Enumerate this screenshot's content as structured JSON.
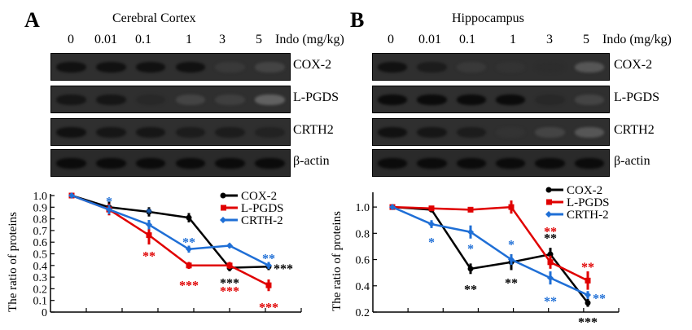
{
  "panels": [
    {
      "letter": "A",
      "title": "Cerebral Cortex",
      "doses": [
        "0",
        "0.01",
        "0.1",
        "1",
        "3",
        "5"
      ],
      "dose_unit": "Indo (mg/kg)",
      "proteins": [
        "COX-2",
        "L-PGDS",
        "CRTH2",
        "β-actin"
      ],
      "band_intensity": [
        [
          0.9,
          0.9,
          0.9,
          0.9,
          0.55,
          0.45
        ],
        [
          0.85,
          0.85,
          0.7,
          0.45,
          0.5,
          0.2
        ],
        [
          0.9,
          0.85,
          0.85,
          0.8,
          0.8,
          0.75
        ],
        [
          0.95,
          0.95,
          0.95,
          0.95,
          0.95,
          0.95
        ]
      ]
    },
    {
      "letter": "B",
      "title": "Hippocampus",
      "doses": [
        "0",
        "0.01",
        "0.1",
        "1",
        "3",
        "5"
      ],
      "dose_unit": "Indo (mg/kg)",
      "proteins": [
        "COX-2",
        "L-PGDS",
        "CRTH2",
        "β-actin"
      ],
      "band_intensity": [
        [
          0.9,
          0.8,
          0.55,
          0.6,
          0.65,
          0.3
        ],
        [
          0.95,
          0.95,
          0.95,
          0.95,
          0.7,
          0.45
        ],
        [
          0.9,
          0.85,
          0.8,
          0.6,
          0.45,
          0.3
        ],
        [
          0.95,
          0.95,
          0.95,
          0.95,
          0.95,
          0.95
        ]
      ]
    }
  ],
  "chart_data": [
    {
      "type": "line",
      "ylabel": "The ratio of proteins",
      "ylim": [
        0,
        1.0
      ],
      "yticks": [
        "0",
        "0.1",
        "0.2",
        "0.3",
        "0.4",
        "0.5",
        "0.6",
        "0.7",
        "0.8",
        "0.9",
        "1.0"
      ],
      "legend_position": "top-right",
      "x": [
        0,
        0.01,
        0.1,
        1,
        3,
        5
      ],
      "series": [
        {
          "name": "COX-2",
          "color": "#000000",
          "values": [
            1.0,
            0.9,
            0.86,
            0.81,
            0.38,
            0.39
          ],
          "errors": [
            0.01,
            0.05,
            0.04,
            0.04,
            0.03,
            0.03
          ]
        },
        {
          "name": "L-PGDS",
          "color": "#e00000",
          "values": [
            1.0,
            0.88,
            0.66,
            0.4,
            0.4,
            0.23
          ],
          "errors": [
            0.01,
            0.05,
            0.08,
            0.03,
            0.03,
            0.05
          ]
        },
        {
          "name": "CRTH-2",
          "color": "#1f6fd6",
          "values": [
            1.0,
            0.88,
            0.75,
            0.54,
            0.57,
            0.4
          ],
          "errors": [
            0.01,
            0.04,
            0.04,
            0.03,
            0.02,
            0.03
          ]
        }
      ],
      "annotations": [
        {
          "text": "*",
          "x": 0.01,
          "y": 0.97,
          "color": "#1f6fd6"
        },
        {
          "text": "*",
          "x": 0.1,
          "y": 0.87,
          "color": "#1f6fd6"
        },
        {
          "text": "**",
          "x": 1,
          "y": 0.62,
          "color": "#1f6fd6"
        },
        {
          "text": "**",
          "x": 5,
          "y": 0.48,
          "color": "#1f6fd6"
        },
        {
          "text": "**",
          "x": 0.1,
          "y": 0.5,
          "color": "#e00000"
        },
        {
          "text": "***",
          "x": 1,
          "y": 0.25,
          "color": "#e00000"
        },
        {
          "text": "***",
          "x": 3,
          "y": 0.27,
          "color": "#000000"
        },
        {
          "text": "***",
          "x": 3,
          "y": 0.2,
          "color": "#e00000"
        },
        {
          "text": "***",
          "x": 5,
          "y": 0.39,
          "color": "#000000",
          "side": "right"
        },
        {
          "text": "***",
          "x": 5,
          "y": 0.06,
          "color": "#e00000"
        }
      ]
    },
    {
      "type": "line",
      "ylabel": "The ratio of proteins",
      "ylim": [
        0.2,
        1.1
      ],
      "yticks": [
        "0.2",
        "0.4",
        "0.6",
        "0.8",
        "1.0"
      ],
      "legend_position": "top-right",
      "x": [
        0,
        0.01,
        0.1,
        1,
        3,
        5
      ],
      "series": [
        {
          "name": "COX-2",
          "color": "#000000",
          "values": [
            1.0,
            0.98,
            0.53,
            0.58,
            0.64,
            0.27
          ],
          "errors": [
            0.01,
            0.02,
            0.04,
            0.06,
            0.05,
            0.03
          ]
        },
        {
          "name": "L-PGDS",
          "color": "#e00000",
          "values": [
            1.0,
            0.99,
            0.98,
            1.0,
            0.58,
            0.44
          ],
          "errors": [
            0.01,
            0.02,
            0.02,
            0.05,
            0.05,
            0.07
          ]
        },
        {
          "name": "CRTH-2",
          "color": "#1f6fd6",
          "values": [
            1.0,
            0.87,
            0.81,
            0.6,
            0.46,
            0.33
          ],
          "errors": [
            0.01,
            0.03,
            0.05,
            0.04,
            0.05,
            0.03
          ]
        }
      ],
      "annotations": [
        {
          "text": "*",
          "x": 0.01,
          "y": 0.75,
          "color": "#1f6fd6"
        },
        {
          "text": "*",
          "x": 0.1,
          "y": 0.7,
          "color": "#1f6fd6"
        },
        {
          "text": "*",
          "x": 1,
          "y": 0.73,
          "color": "#1f6fd6"
        },
        {
          "text": "**",
          "x": 0.1,
          "y": 0.39,
          "color": "#000000"
        },
        {
          "text": "**",
          "x": 1,
          "y": 0.44,
          "color": "#000000"
        },
        {
          "text": "**",
          "x": 3,
          "y": 0.83,
          "color": "#e00000"
        },
        {
          "text": "**",
          "x": 3,
          "y": 0.78,
          "color": "#000000"
        },
        {
          "text": "**",
          "x": 3,
          "y": 0.3,
          "color": "#1f6fd6"
        },
        {
          "text": "**",
          "x": 5,
          "y": 0.56,
          "color": "#e00000"
        },
        {
          "text": "**",
          "x": 5,
          "y": 0.32,
          "color": "#1f6fd6",
          "side": "right"
        },
        {
          "text": "***",
          "x": 5,
          "y": 0.14,
          "color": "#000000"
        }
      ]
    }
  ]
}
